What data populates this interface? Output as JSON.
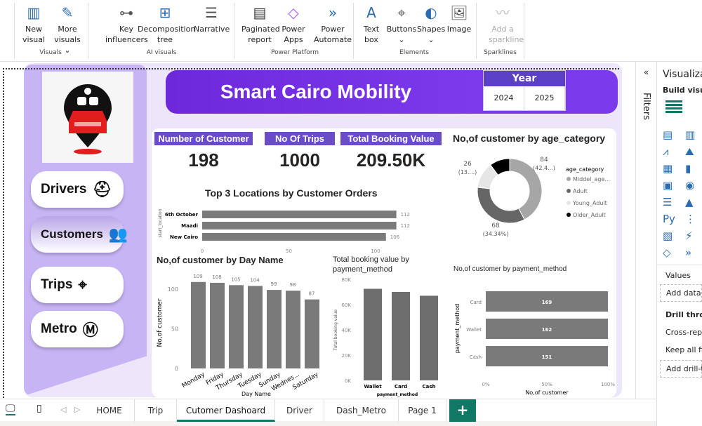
{
  "ribbon": {
    "groups": [
      {
        "label": "Visuals"
      },
      {
        "label": "AI visuals"
      },
      {
        "label": "Power Platform"
      },
      {
        "label": "Elements"
      },
      {
        "label": "Sparklines"
      }
    ],
    "buttons": [
      {
        "l1": "New",
        "l2": "visual",
        "icon": "new-visual-icon"
      },
      {
        "l1": "More",
        "l2": "visuals ⌄",
        "icon": "more-visuals-icon"
      },
      {
        "l1": "Key",
        "l2": "influencers",
        "icon": "key-influencers-icon"
      },
      {
        "l1": "Decomposition",
        "l2": "tree",
        "icon": "decomposition-tree-icon"
      },
      {
        "l1": "Narrative",
        "l2": "",
        "icon": "narrative-icon"
      },
      {
        "l1": "Paginated",
        "l2": "report",
        "icon": "paginated-report-icon"
      },
      {
        "l1": "Power",
        "l2": "Apps",
        "icon": "power-apps-icon"
      },
      {
        "l1": "Power",
        "l2": "Automate",
        "icon": "power-automate-icon"
      },
      {
        "l1": "Text",
        "l2": "box",
        "icon": "text-box-icon"
      },
      {
        "l1": "Buttons",
        "l2": "⌄",
        "icon": "buttons-icon"
      },
      {
        "l1": "Shapes",
        "l2": "⌄",
        "icon": "shapes-icon"
      },
      {
        "l1": "Image",
        "l2": "",
        "icon": "image-icon"
      },
      {
        "l1": "Add a",
        "l2": "sparkline",
        "icon": "sparkline-icon"
      }
    ]
  },
  "report": {
    "title": "Smart Cairo Mobility",
    "year": {
      "label": "Year",
      "options": [
        "2024",
        "2025"
      ]
    },
    "nav": [
      {
        "label": "Drivers",
        "icon": "driver-icon"
      },
      {
        "label": "Customers",
        "icon": "customers-icon"
      },
      {
        "label": "Trips",
        "icon": "route-icon"
      },
      {
        "label": "Metro",
        "icon": "metro-icon"
      }
    ],
    "kpis": [
      {
        "label": "Number of Customer",
        "value": "198"
      },
      {
        "label": "No Of Trips",
        "value": "1000"
      },
      {
        "label": "Total Booking Value",
        "value": "209.50K"
      }
    ],
    "accent": "#6a4cc9"
  },
  "chart_data": [
    {
      "type": "bar",
      "orientation": "horizontal",
      "title": "Top 3 Locations by Customer Orders",
      "ylabel": "start_location",
      "categories": [
        "6th October",
        "Maadi",
        "New Cairo"
      ],
      "values": [
        112,
        112,
        106
      ],
      "xticks": [
        "0",
        "50",
        "100"
      ],
      "xlim": [
        0,
        115
      ]
    },
    {
      "type": "bar",
      "title": "No,of customer by Day Name",
      "xlabel": "Day Name",
      "ylabel": "No,of customer",
      "categories": [
        "Monday",
        "Friday",
        "Thursday",
        "Tuesday",
        "Sunday",
        "Wednes...",
        "Saturday"
      ],
      "values": [
        109,
        108,
        105,
        104,
        99,
        98,
        87
      ],
      "yticks": [
        "0",
        "50",
        "100"
      ],
      "ylim": [
        0,
        115
      ]
    },
    {
      "type": "bar",
      "title": "Total booking value by payment_method",
      "xlabel": "payment_method",
      "ylabel": "Total booking value",
      "categories": [
        "Wallet",
        "Card",
        "Cash"
      ],
      "values": [
        72500,
        70000,
        67000
      ],
      "yticks": [
        "0K",
        "20K",
        "40K",
        "60K",
        "80K"
      ],
      "ylim": [
        0,
        80000
      ]
    },
    {
      "type": "pie",
      "donut": true,
      "title": "No,of customer by age_category",
      "legend_title": "age_category",
      "legend_position": "right",
      "slices": [
        {
          "name": "Middel_age...",
          "value": 84,
          "label": "84",
          "pct": "(42.4...)",
          "color": "#a6a6a6"
        },
        {
          "name": "Adult",
          "value": 68,
          "label": "68",
          "pct": "(34.34%)",
          "color": "#666666"
        },
        {
          "name": "Young_Adult",
          "value": 26,
          "label": "26",
          "pct": "(13....)",
          "color": "#e6e6e6"
        },
        {
          "name": "Older_Adult",
          "value": 20,
          "color": "#000000"
        }
      ]
    },
    {
      "type": "bar",
      "orientation": "horizontal",
      "stacked_percent": true,
      "title": "No,of customer by payment_method",
      "xlabel": "No,of customer",
      "ylabel": "payment_method",
      "categories": [
        "Card",
        "Wallet",
        "Cash"
      ],
      "values": [
        169,
        162,
        151
      ],
      "xticks": [
        "0%",
        "50%",
        "100%"
      ]
    }
  ],
  "panes": {
    "filters": "Filters",
    "viz_title": "Visualiza",
    "build": "Build visua",
    "values": "Values",
    "add_data": "Add data",
    "drill": "Drill throu",
    "cross": "Cross-repo",
    "keep": "Keep all fil",
    "add_drill": "Add drill-t"
  },
  "tabs": [
    "HOME",
    "Trip",
    "Cutomer Dashoard",
    "Driver",
    "Dash_Metro",
    "Page 1"
  ],
  "active_tab": "Cutomer Dashoard"
}
